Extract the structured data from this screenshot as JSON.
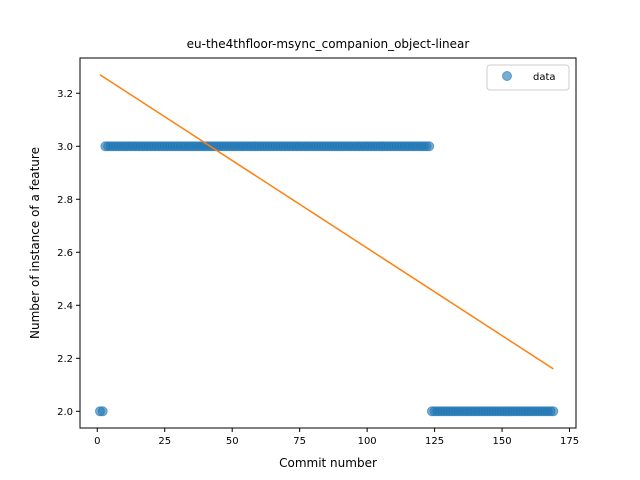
{
  "chart_data": {
    "type": "scatter",
    "title": "eu-the4thfloor-msync_companion_object-linear",
    "xlabel": "Commit number",
    "ylabel": "Number of instance of a feature",
    "xlim": [
      -6.4,
      177.4
    ],
    "ylim": [
      1.937,
      3.333
    ],
    "xticks": [
      0,
      25,
      50,
      75,
      100,
      125,
      150,
      175
    ],
    "yticks": [
      2.0,
      2.2,
      2.4,
      2.6,
      2.8,
      3.0,
      3.2
    ],
    "ytick_labels": [
      "2.0",
      "2.2",
      "2.4",
      "2.6",
      "2.8",
      "3.0",
      "3.2"
    ],
    "grid": false,
    "legend_position": "top-right",
    "series": [
      {
        "name": "data",
        "kind": "scatter",
        "color": "#1f77b4",
        "segments": [
          {
            "x_start": 1,
            "x_end": 2,
            "y": 2.0
          },
          {
            "x_start": 3,
            "x_end": 123,
            "y": 3.0
          },
          {
            "x_start": 124,
            "x_end": 169,
            "y": 2.0
          }
        ]
      },
      {
        "kind": "line",
        "color": "#ff7f0e",
        "x": [
          1,
          169
        ],
        "y": [
          3.27,
          2.16
        ]
      }
    ]
  }
}
